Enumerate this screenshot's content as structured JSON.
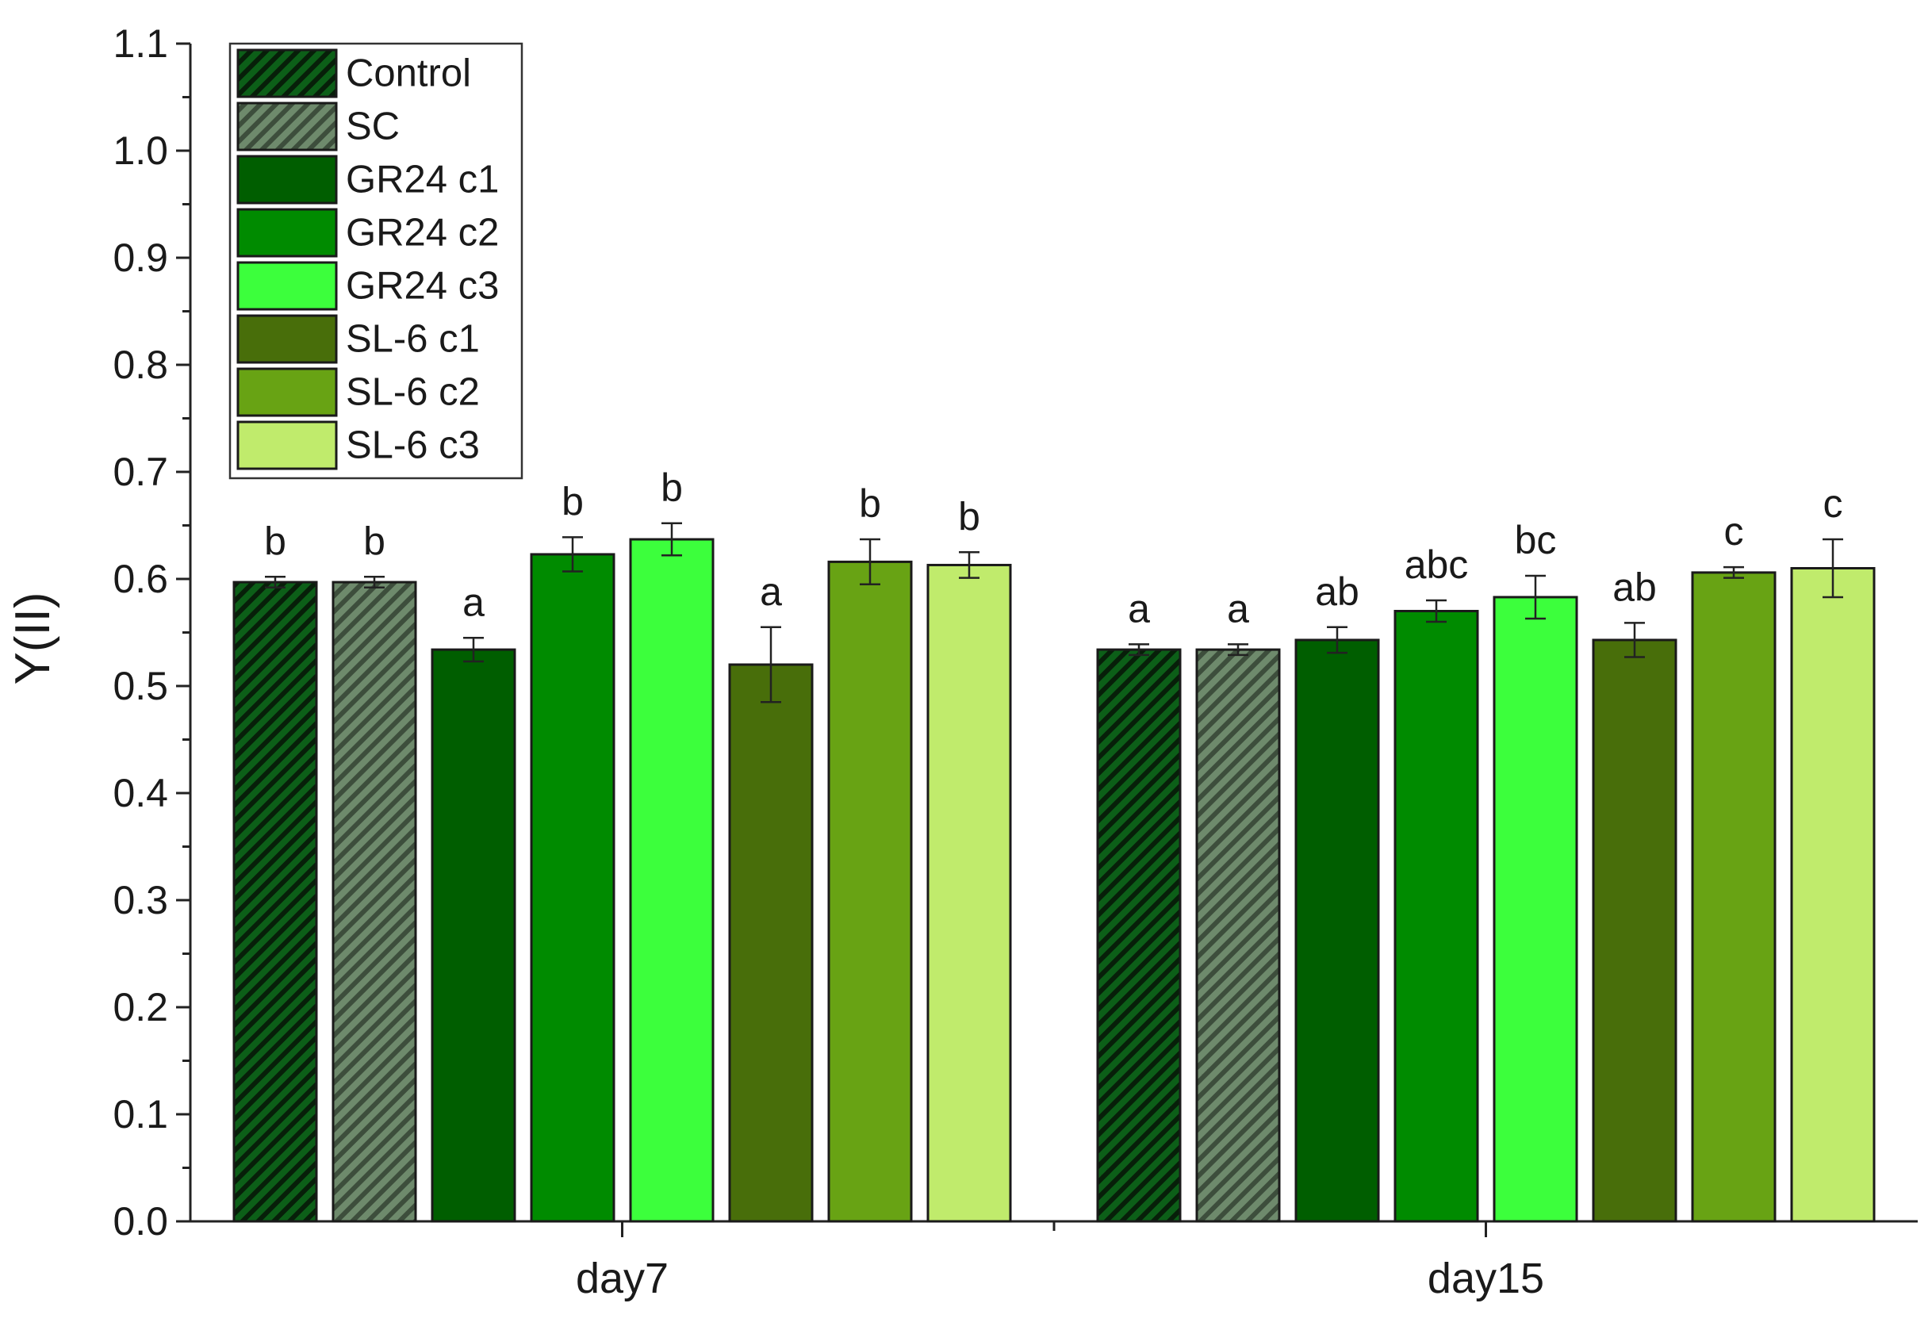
{
  "chart_data": {
    "type": "bar",
    "ylabel": "Y(II)",
    "xlabel": "",
    "ylim": [
      0,
      1.1
    ],
    "yticks": [
      "0.0",
      "0.1",
      "0.2",
      "0.3",
      "0.4",
      "0.5",
      "0.6",
      "0.7",
      "0.8",
      "0.9",
      "1.0",
      "1.1"
    ],
    "categories": [
      "day7",
      "day15"
    ],
    "legend_position": "top-left",
    "series": [
      {
        "name": "Control",
        "color": "#0b4f12",
        "pattern": "hatch-dark",
        "values": [
          0.597,
          0.534
        ],
        "errors": [
          0.005,
          0.005
        ],
        "letters": [
          "b",
          "a"
        ]
      },
      {
        "name": "SC",
        "color": "#6e8a6c",
        "pattern": "hatch-light",
        "values": [
          0.597,
          0.534
        ],
        "errors": [
          0.005,
          0.005
        ],
        "letters": [
          "b",
          "a"
        ]
      },
      {
        "name": "GR24 c1",
        "color": "#005e00",
        "pattern": "solid",
        "values": [
          0.534,
          0.543
        ],
        "errors": [
          0.011,
          0.012
        ],
        "letters": [
          "a",
          "ab"
        ]
      },
      {
        "name": "GR24 c2",
        "color": "#008b00",
        "pattern": "solid",
        "values": [
          0.623,
          0.57
        ],
        "errors": [
          0.016,
          0.01
        ],
        "letters": [
          "b",
          "abc"
        ]
      },
      {
        "name": "GR24 c3",
        "color": "#3cff3c",
        "pattern": "solid",
        "values": [
          0.637,
          0.583
        ],
        "errors": [
          0.015,
          0.02
        ],
        "letters": [
          "b",
          "bc"
        ]
      },
      {
        "name": "SL-6 c1",
        "color": "#486e0a",
        "pattern": "solid",
        "values": [
          0.52,
          0.543
        ],
        "errors": [
          0.035,
          0.016
        ],
        "letters": [
          "a",
          "ab"
        ]
      },
      {
        "name": "SL-6 c2",
        "color": "#68a314",
        "pattern": "solid",
        "values": [
          0.616,
          0.606
        ],
        "errors": [
          0.021,
          0.005
        ],
        "letters": [
          "b",
          "c"
        ]
      },
      {
        "name": "SL-6 c3",
        "color": "#c0eb6c",
        "pattern": "solid",
        "values": [
          0.613,
          0.61
        ],
        "errors": [
          0.012,
          0.027
        ],
        "letters": [
          "b",
          "c"
        ]
      }
    ]
  }
}
